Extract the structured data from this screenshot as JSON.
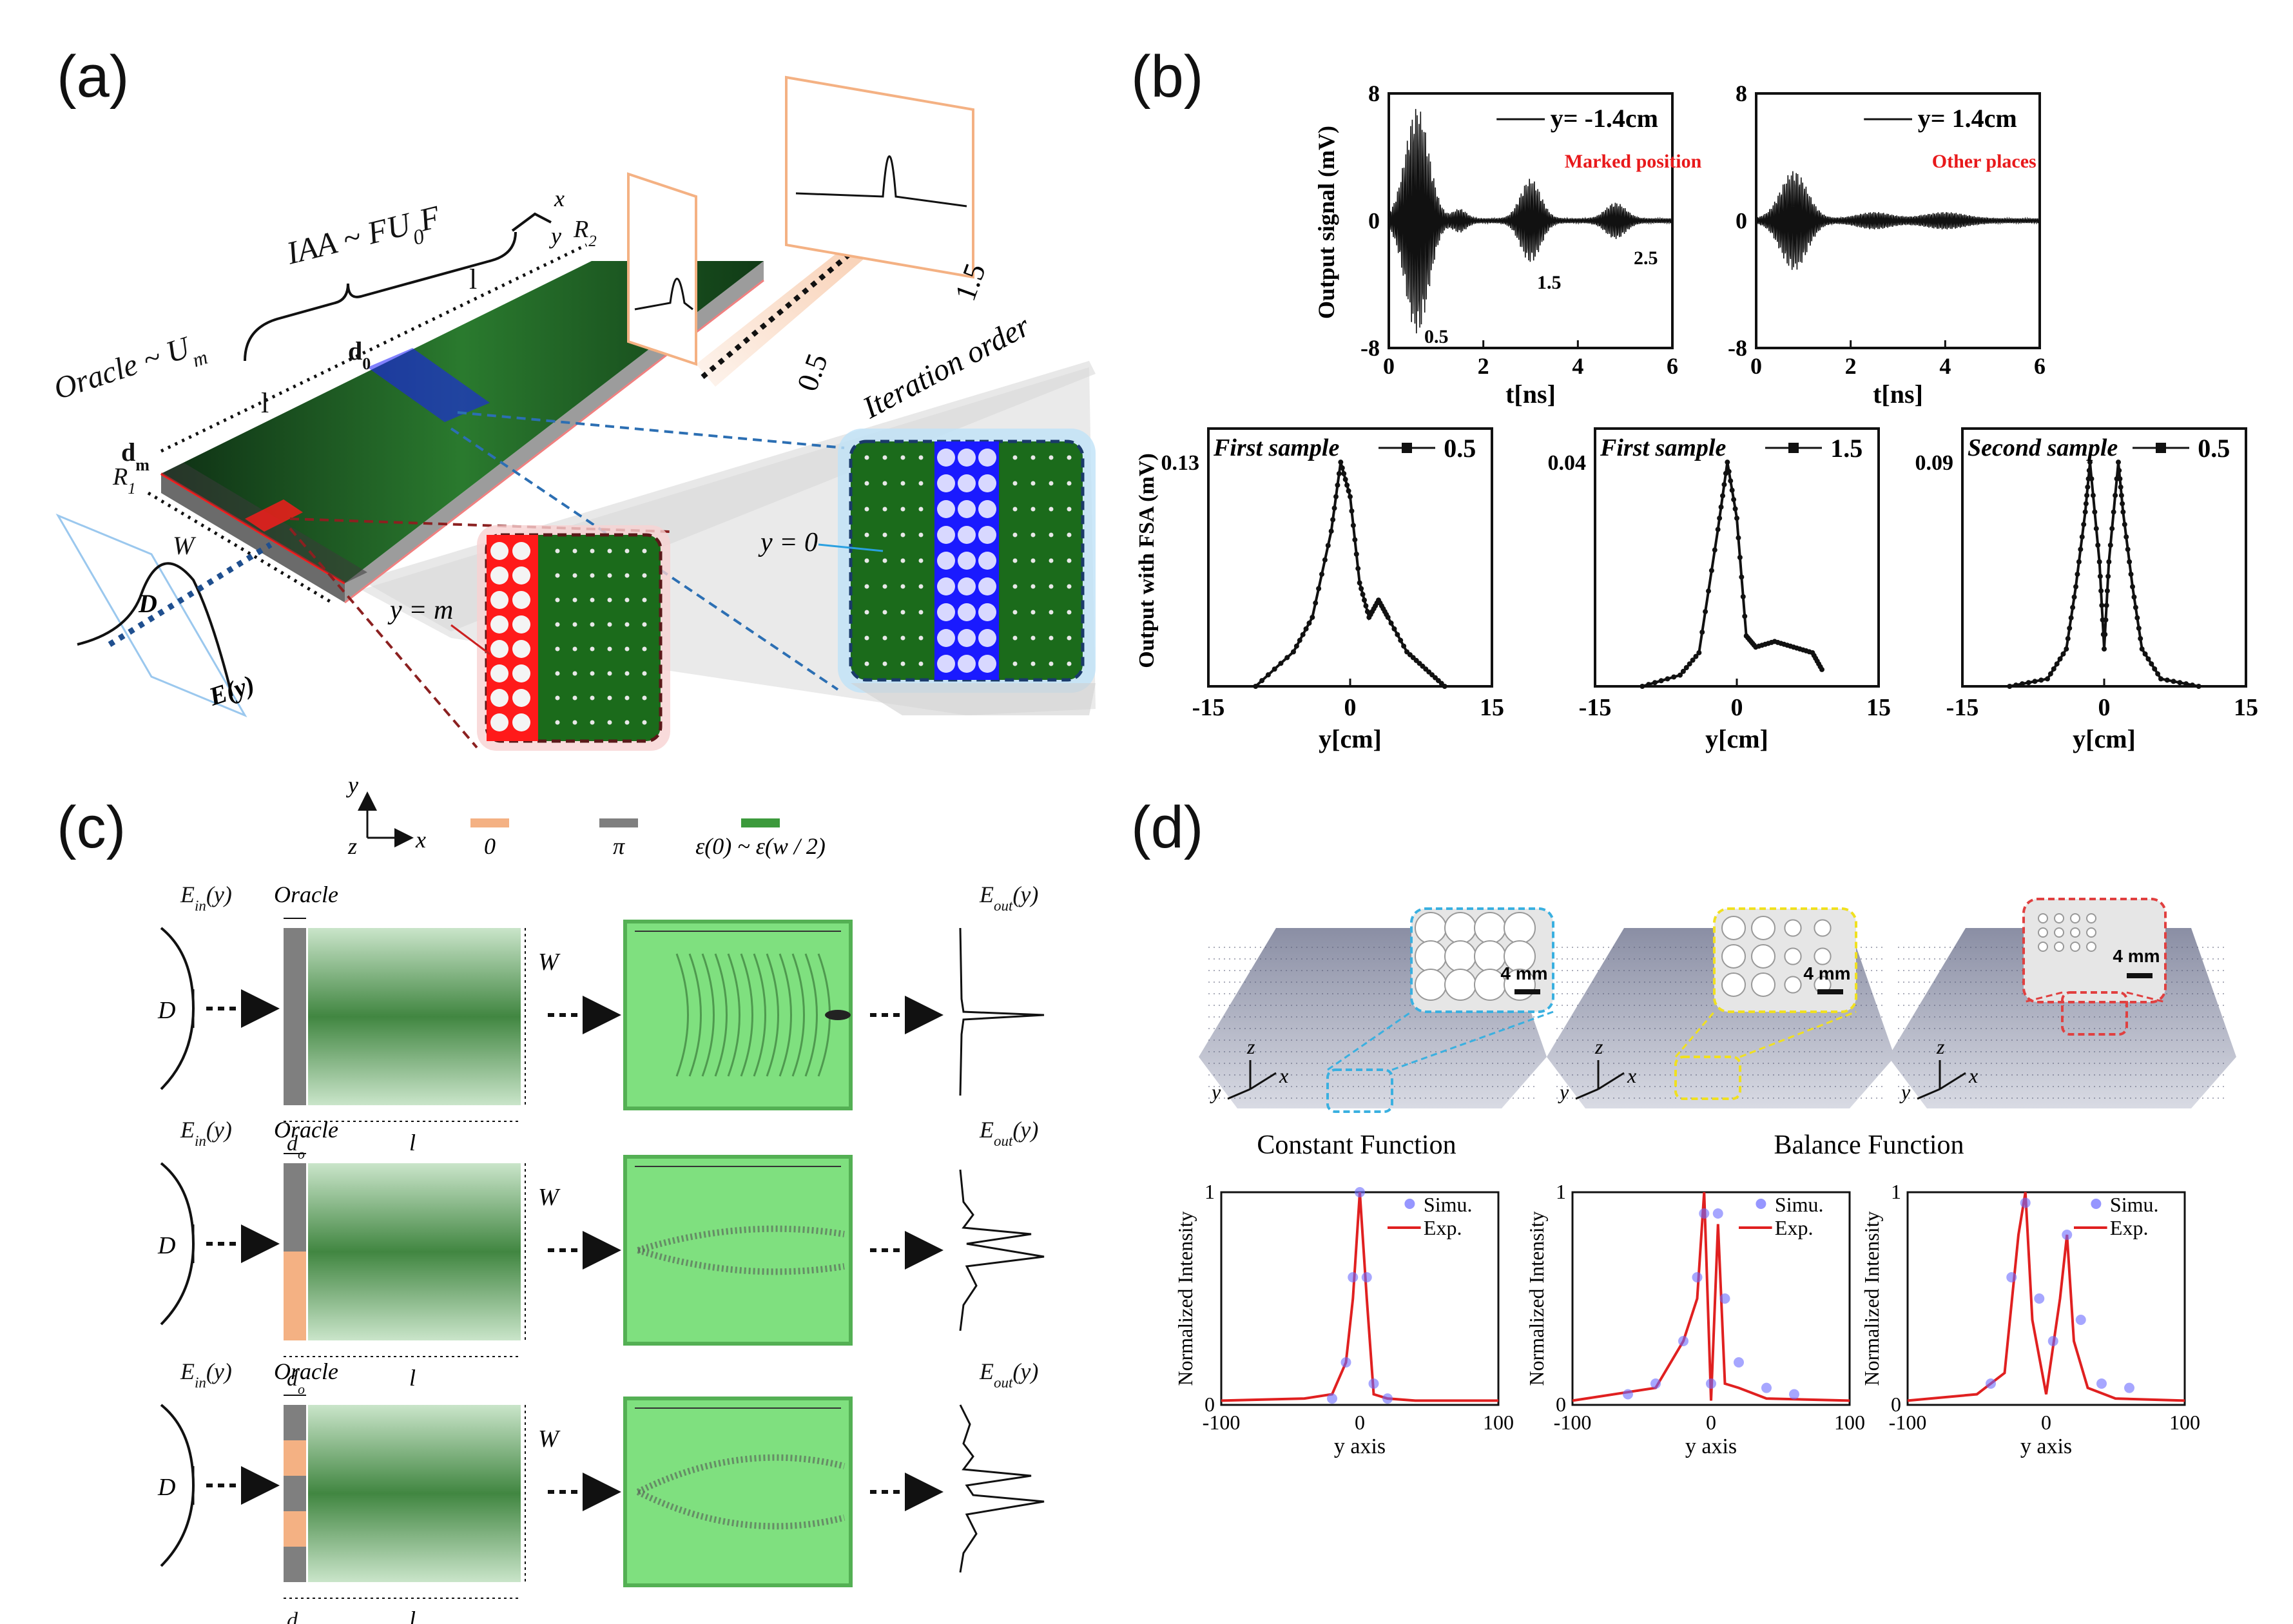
{
  "panels": {
    "a": {
      "label": "(a)",
      "oracle": "Oracle ~ U",
      "oracle_sub": "m",
      "iaa": "IAA ~ FU",
      "iaa_sub": "0",
      "iaa_tail": "F",
      "dm": "d",
      "dm_sub": "m",
      "d0": "d",
      "d0_sub": "0",
      "l1": "l",
      "l2": "l",
      "R1": "R",
      "R1_sub": "1",
      "R2": "R",
      "R2_sub": "2",
      "W": "W",
      "D": "D",
      "Ey": "E(y)",
      "ax_x": "x",
      "ax_y": "y",
      "iter_05": "0.5",
      "iter_15": "1.5",
      "iter_label": "Iteration order",
      "y0": "y = 0",
      "ym": "y = m",
      "colors": {
        "slab": "#1f5a24",
        "blue": "#1a1aff",
        "red": "#ff1a1a",
        "orange": "#f4b183"
      }
    },
    "b": {
      "label": "(b)",
      "signal_plots": [
        {
          "legend": "y= -1.4cm",
          "annotation": "Marked position",
          "ylabel": "Output signal (mV)",
          "xlabel": "t[ns]",
          "yticks": [
            "8",
            "0",
            "-8"
          ],
          "xticks": [
            "0",
            "2",
            "4",
            "6"
          ],
          "peaks": [
            "0.5",
            "1.5",
            "2.5"
          ]
        },
        {
          "legend": "y= 1.4cm",
          "annotation": "Other places",
          "ylabel": "",
          "xlabel": "t[ns]",
          "yticks": [
            "8",
            "0",
            "-8"
          ],
          "xticks": [
            "0",
            "2",
            "4",
            "6"
          ],
          "peaks": []
        }
      ],
      "fsa_ylabel": "Output with FSA (mV)",
      "fsa_plots": [
        {
          "title": "First sample",
          "legend": "0.5",
          "ymax": "0.13",
          "xlabel": "y[cm]",
          "xticks": [
            "-15",
            "0",
            "15"
          ]
        },
        {
          "title": "First sample",
          "legend": "1.5",
          "ymax": "0.04",
          "xlabel": "y[cm]",
          "xticks": [
            "-15",
            "0",
            "15"
          ]
        },
        {
          "title": "Second sample",
          "legend": "0.5",
          "ymax": "0.09",
          "xlabel": "y[cm]",
          "xticks": [
            "-15",
            "0",
            "15"
          ]
        }
      ],
      "annotation_color": "#e8191b"
    },
    "c": {
      "label": "(c)",
      "legend_axes": {
        "y": "y",
        "z": "z",
        "x": "x"
      },
      "legend_items": [
        {
          "label": "0",
          "color": "#f4b183"
        },
        {
          "label": "π",
          "color": "#7f7f7f"
        },
        {
          "label": "ε(0) ~ ε(w / 2)",
          "color": "#3c9a3c"
        }
      ],
      "rows": [
        {
          "ein": "E",
          "ein_sub": "in",
          "ein_tail": "(y)",
          "oracle": "Oracle",
          "D": "D",
          "do": "d",
          "do_sub": "o",
          "l": "l",
          "W": "W",
          "eout": "E",
          "eout_sub": "out",
          "eout_tail": "(y)"
        },
        {
          "ein": "E",
          "ein_sub": "in",
          "ein_tail": "(y)",
          "oracle": "Oracle",
          "D": "D",
          "do": "d",
          "do_sub": "o",
          "l": "l",
          "W": "W",
          "eout": "E",
          "eout_sub": "out",
          "eout_tail": "(y)"
        },
        {
          "ein": "E",
          "ein_sub": "in",
          "ein_tail": "(y)",
          "oracle": "Oracle",
          "D": "D",
          "do": "d",
          "do_sub": "o",
          "l": "l",
          "W": "W",
          "eout": "E",
          "eout_sub": "out",
          "eout_tail": "(y)"
        }
      ]
    },
    "d": {
      "label": "(d)",
      "scale_bar": "4 mm",
      "captions": [
        "Constant Function",
        "Balance Function"
      ],
      "axes_labels": {
        "z": "z",
        "y": "y",
        "x": "x"
      },
      "plots": [
        {
          "ylabel": "Normalized Intensity",
          "xlabel": "y axis",
          "xticks": [
            "-100",
            "0",
            "100"
          ],
          "yticks": [
            "0",
            "1"
          ],
          "legend": [
            "Simu.",
            "Exp."
          ]
        },
        {
          "ylabel": "Normalized Intensity",
          "xlabel": "y axis",
          "xticks": [
            "-100",
            "0",
            "100"
          ],
          "yticks": [
            "0",
            "1"
          ],
          "legend": [
            "Simu.",
            "Exp."
          ]
        },
        {
          "ylabel": "Normalized Intensity",
          "xlabel": "y axis",
          "xticks": [
            "-100",
            "0",
            "100"
          ],
          "yticks": [
            "0",
            "1"
          ],
          "legend": [
            "Simu.",
            "Exp."
          ]
        }
      ],
      "colors": {
        "simu": "#6a6aff",
        "exp": "#e02020",
        "inset1": "#3ab0e0",
        "inset2": "#f0e020",
        "inset3": "#e04040"
      }
    }
  },
  "chart_data": [
    {
      "type": "line",
      "panel": "b",
      "title": "Marked position",
      "series": [
        {
          "name": "y= -1.4cm",
          "peaks_x": [
            0.5,
            1.5,
            2.5
          ],
          "peak_amplitudes": [
            7,
            2.5,
            1
          ]
        }
      ],
      "xlabel": "t[ns]",
      "ylabel": "Output signal (mV)",
      "xlim": [
        0,
        6
      ],
      "ylim": [
        -8,
        8
      ]
    },
    {
      "type": "line",
      "panel": "b",
      "title": "Other places",
      "series": [
        {
          "name": "y= 1.4cm",
          "peaks_x": [
            0.5
          ],
          "peak_amplitudes": [
            3
          ]
        }
      ],
      "xlabel": "t[ns]",
      "xlim": [
        0,
        6
      ],
      "ylim": [
        -8,
        8
      ]
    },
    {
      "type": "line",
      "panel": "b",
      "title": "First sample",
      "series": [
        {
          "name": "0.5",
          "x": [
            -10,
            -6,
            -4,
            -2,
            -1,
            0,
            1,
            2,
            3,
            4,
            6,
            8,
            10
          ],
          "y": [
            0,
            0.02,
            0.04,
            0.09,
            0.13,
            0.11,
            0.06,
            0.04,
            0.05,
            0.04,
            0.02,
            0.01,
            0
          ]
        }
      ],
      "xlabel": "y[cm]",
      "ylabel": "Output with FSA (mV)",
      "xlim": [
        -15,
        15
      ]
    },
    {
      "type": "line",
      "panel": "b",
      "title": "First sample",
      "series": [
        {
          "name": "1.5",
          "x": [
            -10,
            -6,
            -4,
            -2,
            -1,
            0,
            1,
            2,
            4,
            6,
            8,
            9
          ],
          "y": [
            0,
            0.002,
            0.006,
            0.028,
            0.04,
            0.03,
            0.009,
            0.007,
            0.008,
            0.007,
            0.006,
            0.003
          ]
        }
      ],
      "xlabel": "y[cm]",
      "xlim": [
        -15,
        15
      ]
    },
    {
      "type": "line",
      "panel": "b",
      "title": "Second sample",
      "series": [
        {
          "name": "0.5",
          "x": [
            -10,
            -6,
            -4,
            -3,
            -2,
            -1.5,
            -0.5,
            0,
            0.5,
            1.5,
            2,
            3,
            4,
            6,
            10
          ],
          "y": [
            0,
            0.003,
            0.015,
            0.04,
            0.07,
            0.09,
            0.05,
            0.015,
            0.05,
            0.09,
            0.07,
            0.04,
            0.015,
            0.003,
            0
          ]
        }
      ],
      "xlabel": "y[cm]",
      "xlim": [
        -15,
        15
      ]
    },
    {
      "type": "line",
      "panel": "d",
      "title": "Constant Function",
      "series": [
        {
          "name": "Exp.",
          "x": [
            -100,
            -40,
            -20,
            -10,
            -5,
            0,
            5,
            10,
            20,
            40,
            100
          ],
          "y": [
            0.02,
            0.03,
            0.05,
            0.2,
            0.5,
            1,
            0.5,
            0.05,
            0.03,
            0.02,
            0.02
          ]
        },
        {
          "name": "Simu.",
          "x": [
            -20,
            -10,
            -5,
            0,
            5,
            10,
            20
          ],
          "y": [
            0.03,
            0.2,
            0.6,
            1,
            0.6,
            0.1,
            0.03
          ]
        }
      ],
      "xlabel": "y axis",
      "ylabel": "Normalized Intensity",
      "xlim": [
        -100,
        100
      ],
      "ylim": [
        0,
        1
      ]
    },
    {
      "type": "line",
      "panel": "d",
      "title": "Balance Function",
      "series": [
        {
          "name": "Exp.",
          "x": [
            -100,
            -40,
            -20,
            -10,
            -5,
            0,
            5,
            10,
            20,
            40,
            100
          ],
          "y": [
            0.02,
            0.08,
            0.3,
            0.5,
            1,
            0.02,
            0.85,
            0.1,
            0.08,
            0.03,
            0.02
          ]
        },
        {
          "name": "Simu.",
          "x": [
            -60,
            -40,
            -20,
            -10,
            -5,
            0,
            5,
            10,
            20,
            40,
            60
          ],
          "y": [
            0.05,
            0.1,
            0.3,
            0.6,
            0.9,
            0.1,
            0.9,
            0.5,
            0.2,
            0.08,
            0.05
          ]
        }
      ],
      "xlabel": "y axis",
      "ylabel": "Normalized Intensity",
      "xlim": [
        -100,
        100
      ],
      "ylim": [
        0,
        1
      ]
    },
    {
      "type": "line",
      "panel": "d",
      "title": "Balance Function",
      "series": [
        {
          "name": "Exp.",
          "x": [
            -100,
            -50,
            -30,
            -20,
            -15,
            -10,
            0,
            10,
            15,
            20,
            30,
            50,
            100
          ],
          "y": [
            0.02,
            0.05,
            0.15,
            0.8,
            1,
            0.4,
            0.05,
            0.5,
            0.8,
            0.3,
            0.08,
            0.03,
            0.02
          ]
        },
        {
          "name": "Simu.",
          "x": [
            -40,
            -25,
            -15,
            -5,
            5,
            15,
            25,
            40,
            60
          ],
          "y": [
            0.1,
            0.6,
            0.95,
            0.5,
            0.3,
            0.8,
            0.4,
            0.1,
            0.08
          ]
        }
      ],
      "xlabel": "y axis",
      "ylabel": "Normalized Intensity",
      "xlim": [
        -100,
        100
      ],
      "ylim": [
        0,
        1
      ]
    }
  ]
}
